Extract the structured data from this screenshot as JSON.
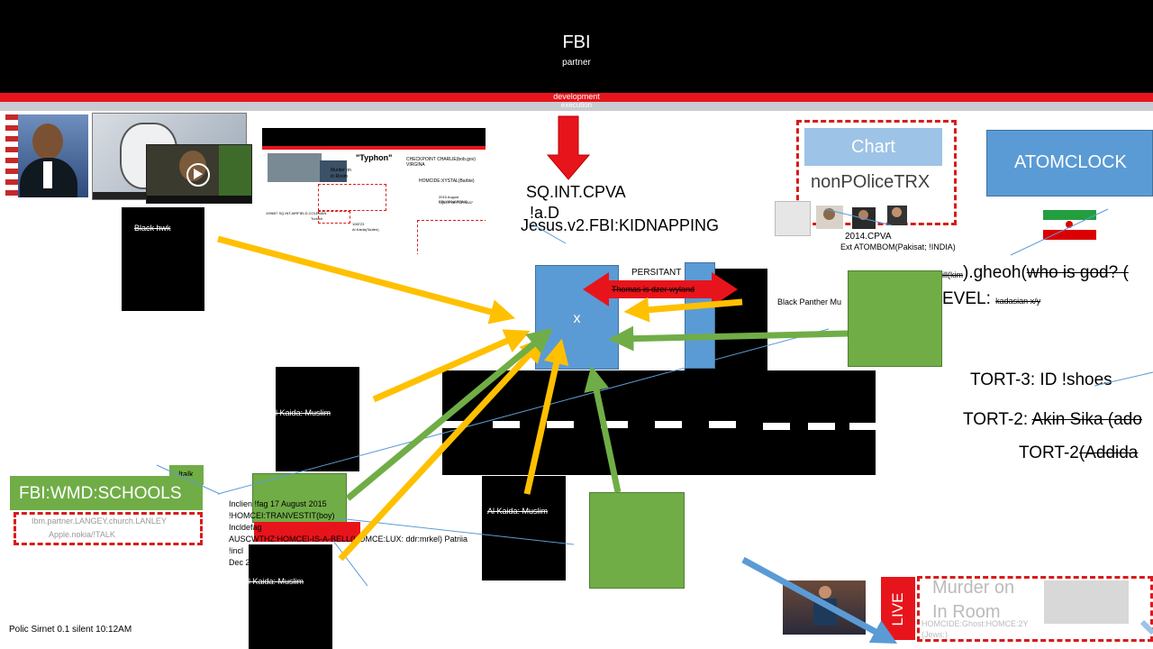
{
  "header": {
    "title": "FBI",
    "subtitle": "partner",
    "bar_label": "development",
    "bar2_label": "execution"
  },
  "left": {
    "black_hwk": "Black hwk",
    "wmd_schools": "FBI:WMD:SCHOOLS",
    "talk": "!talk",
    "partner_line1": "Ibm.partner.LANGEY.church.LANLEY",
    "partner_line2": "Apple.nokia/!TALK"
  },
  "center": {
    "sq_line1": "SQ.INT.CPVA",
    "sq_line2": "!a.D",
    "sq_line3": "Jesus.v2.FBI:KIDNAPPING",
    "x_label": "x",
    "persitant": "PERSITANT",
    "thomas": "Thomas is dzer wyland",
    "black_panther": "Black Panther Mu",
    "alkaida1": "l Kaida: Muslim",
    "alkaida2": "Al Kaida: Muslim",
    "alkaida3": "l Kaida: Muslim",
    "notes": [
      "Inclien !fag 17 August 2015",
      "!HOMCEI:TRANVESTIT(boy)",
      "Incldefag",
      "AUSCWTHZ:HOMCEI-IS-A-BELL(HOMCE:LUX: ddr:mrkel) Patriia",
      "!incl",
      "Dec 2"
    ]
  },
  "right": {
    "chart_label": "Chart",
    "nonpolice": "nonPOliceTRX",
    "atomclock": "ATOMCLOCK",
    "cpva": "2014.CPVA",
    "atombom": "Ext ATOMBOM(Pakisat; !INDIA)",
    "gheoh_pre": "ill(kim",
    "gheoh_main": ").gheoh(",
    "gheoh_strike": "who is god? (",
    "level_main": "EVEL: ",
    "level_small": "kadasian x/y",
    "tort3": "TORT-3: ID !shoes",
    "tort2a_pre": "TORT-2: ",
    "tort2a_strike": "Akin Sika (ado",
    "tort2b_pre": "TORT-2",
    "tort2b_strike": "(Addida",
    "live": "LIVE",
    "murder_line1": "Murder on",
    "murder_line2": "In Room",
    "homcide": "HOMCIDE:Ghost:HOMCE:2Y",
    "homcide2": "(Jews:)"
  },
  "thumb": {
    "title": "\"Typhon\"",
    "checkpoint": "CHECKPOINT CHARLIE(bob.gov) VIRGINA",
    "murder": "Murder on",
    "room": "In Room",
    "homcide": "HOMCIDE:XYSTAL(Barbie)",
    "august": "2015 August FBI:KIDNAPPING",
    "sqlcpva": "SQLCPVA.PBR:$187",
    "left_text": "199657 SQ.INT.AIRFIELD.COLEMAN",
    "turkish": "Turkish",
    "al_kaida": "Al Kaida(Taufen)",
    "num": "108723"
  },
  "footer": {
    "status": "Polic Sirnet 0.1 silent  10:12AM"
  },
  "colors": {
    "yellow_arrow": "#ffc000",
    "green_arrow": "#70ad47",
    "red_arrow": "#e8141b",
    "blue_box": "#5b9bd5",
    "green_box": "#70ad47"
  }
}
